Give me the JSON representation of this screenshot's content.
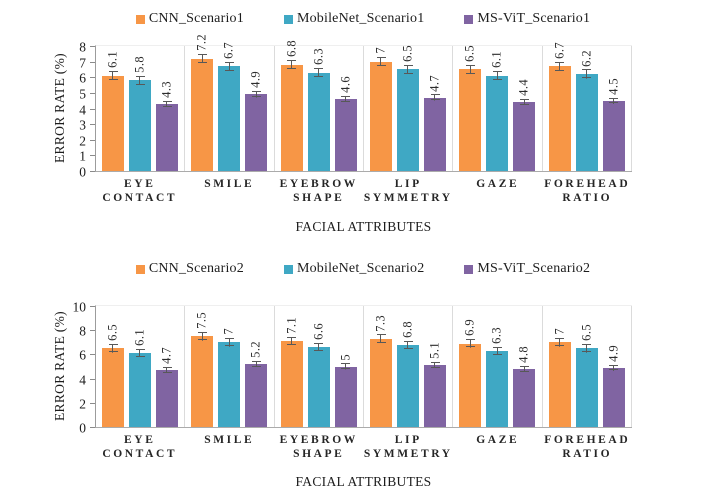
{
  "figure": {
    "description_note": ""
  },
  "chart_data": [
    {
      "type": "bar",
      "title": "",
      "xlabel": "FACIAL ATTRIBUTES",
      "ylabel": "ERROR RATE (%)",
      "ylim": [
        0,
        8
      ],
      "ytick_step": 1,
      "legend_position": "top",
      "grid": "vertical category separators only",
      "error_bars": true,
      "error_bar_color": "#585858",
      "categories": [
        "EYE CONTACT",
        "SMILE",
        "EYEBROW SHAPE",
        "LIP SYMMETRY",
        "GAZE",
        "FOREHEAD RATIO"
      ],
      "category_lines": [
        [
          "EYE",
          "CONTACT"
        ],
        [
          "SMILE"
        ],
        [
          "EYEBROW",
          "SHAPE"
        ],
        [
          "LIP",
          "SYMMETRY"
        ],
        [
          "GAZE"
        ],
        [
          "FOREHEAD",
          "RATIO"
        ]
      ],
      "series": [
        {
          "name": "CNN_Scenario1",
          "color": "#F79646",
          "values": [
            6.1,
            7.2,
            6.8,
            7,
            6.5,
            6.7
          ],
          "err": 0.3
        },
        {
          "name": "MobileNet_Scenario1",
          "color": "#3FA8C4",
          "values": [
            5.8,
            6.7,
            6.3,
            6.5,
            6.1,
            6.2
          ],
          "err": 0.3
        },
        {
          "name": "MS-ViT_Scenario1",
          "color": "#8064A2",
          "values": [
            4.3,
            4.9,
            4.6,
            4.7,
            4.4,
            4.5
          ],
          "err": 0.2
        }
      ]
    },
    {
      "type": "bar",
      "title": "",
      "xlabel": "FACIAL ATTRIBUTES",
      "ylabel": "ERROR RATE (%)",
      "ylim": [
        0,
        10
      ],
      "ytick_step": 2,
      "legend_position": "top",
      "grid": "vertical category separators only",
      "error_bars": true,
      "error_bar_color": "#585858",
      "categories": [
        "EYE CONTACT",
        "SMILE",
        "EYEBROW SHAPE",
        "LIP SYMMETRY",
        "GAZE",
        "FOREHEAD RATIO"
      ],
      "category_lines": [
        [
          "EYE",
          "CONTACT"
        ],
        [
          "SMILE"
        ],
        [
          "EYEBROW",
          "SHAPE"
        ],
        [
          "LIP",
          "SYMMETRY"
        ],
        [
          "GAZE"
        ],
        [
          "FOREHEAD",
          "RATIO"
        ]
      ],
      "series": [
        {
          "name": "CNN_Scenario2",
          "color": "#F79646",
          "values": [
            6.5,
            7.5,
            7.1,
            7.3,
            6.9,
            7
          ],
          "err": 0.35
        },
        {
          "name": "MobileNet_Scenario2",
          "color": "#3FA8C4",
          "values": [
            6.1,
            7,
            6.6,
            6.8,
            6.3,
            6.5
          ],
          "err": 0.35
        },
        {
          "name": "MS-ViT_Scenario2",
          "color": "#8064A2",
          "values": [
            4.7,
            5.2,
            5,
            5.1,
            4.8,
            4.9
          ],
          "err": 0.25
        }
      ]
    }
  ]
}
